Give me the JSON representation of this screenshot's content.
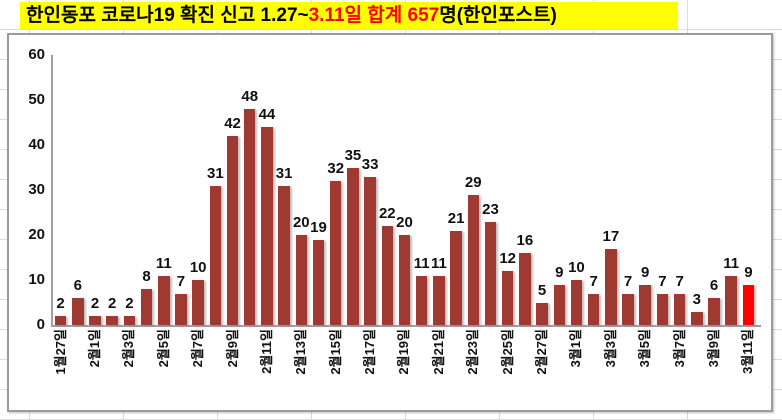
{
  "title": {
    "background": "#FFFF00",
    "segments": [
      {
        "text": "한인동포 코로나19 확진 신고 1.27~",
        "color": "#000000"
      },
      {
        "text": "3.11일 합계 657",
        "color": "#FF0000"
      },
      {
        "text": "명(한인포스트)",
        "color": "#000000"
      }
    ]
  },
  "chart_data": {
    "type": "bar",
    "title": "한인동포 코로나19 확진 신고 1.27~3.11일 합계 657명(한인포스트)",
    "total": 657,
    "ylim": [
      0,
      60
    ],
    "y_ticks": [
      0,
      10,
      20,
      30,
      40,
      50,
      60
    ],
    "grid": false,
    "legend": false,
    "bar_color": "#9E3A32",
    "highlight_color": "#FF0000",
    "highlight_index": 40,
    "axis_color": "#A0A0A0",
    "x_labels": [
      "1월27일",
      "",
      "2월1일",
      "",
      "2월3일",
      "",
      "2월5일",
      "",
      "2월7일",
      "",
      "2월9일",
      "",
      "2월11일",
      "",
      "2월13일",
      "",
      "2월15일",
      "",
      "2월17일",
      "",
      "2월19일",
      "",
      "2월21일",
      "",
      "2월23일",
      "",
      "2월25일",
      "",
      "2월27일",
      "",
      "3월1일",
      "",
      "3월3일",
      "",
      "3월5일",
      "",
      "3월7일",
      "",
      "3월9일",
      "",
      "3월11일"
    ],
    "values": [
      2,
      6,
      2,
      2,
      2,
      8,
      11,
      7,
      10,
      31,
      42,
      48,
      44,
      31,
      20,
      19,
      32,
      35,
      33,
      22,
      20,
      11,
      11,
      21,
      29,
      23,
      12,
      16,
      5,
      9,
      10,
      7,
      17,
      7,
      9,
      7,
      7,
      3,
      6,
      11,
      9
    ]
  }
}
